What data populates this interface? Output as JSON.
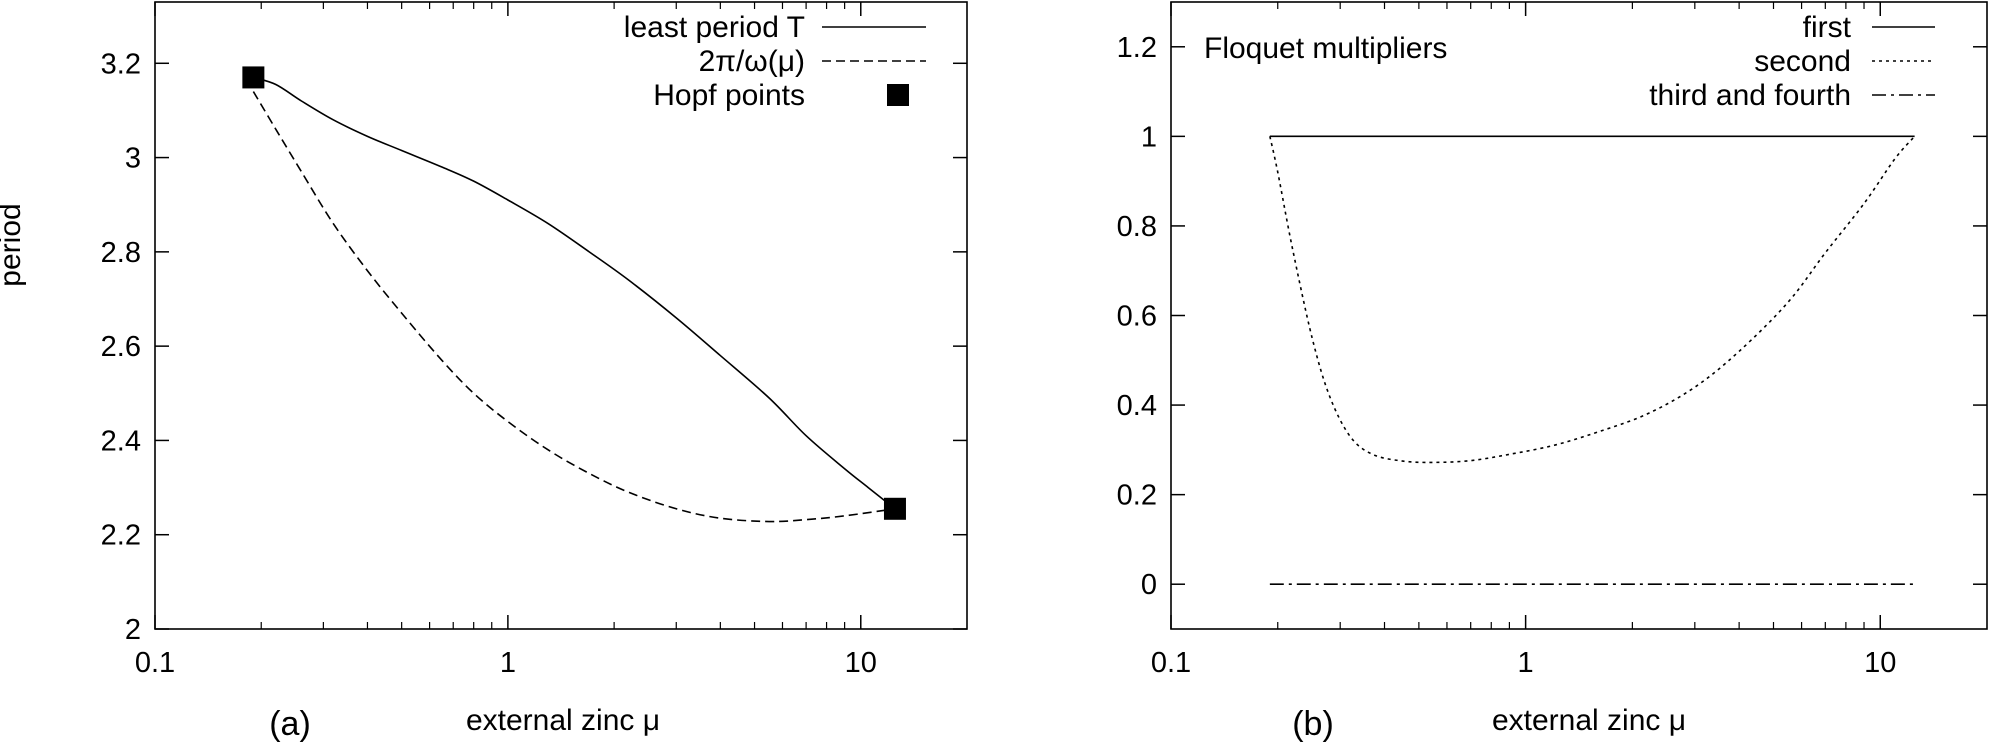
{
  "chart_data": [
    {
      "type": "line",
      "panel_label": "(a)",
      "xlabel": "external zinc μ",
      "ylabel": "period",
      "xscale": "log",
      "xlim": [
        0.1,
        20
      ],
      "ylim": [
        2.0,
        3.33
      ],
      "x_ticks": [
        0.1,
        1,
        10
      ],
      "x_tick_labels": [
        "0.1",
        "1",
        "10"
      ],
      "y_ticks": [
        2.0,
        2.2,
        2.4,
        2.6,
        2.8,
        3.0,
        3.2
      ],
      "y_tick_labels": [
        "2",
        "2.2",
        "2.4",
        "2.6",
        "2.8",
        "3",
        "3.2"
      ],
      "grid": false,
      "legend_position": "top-right",
      "series": [
        {
          "name": "least period T",
          "style": "solid",
          "x": [
            0.19,
            0.22,
            0.26,
            0.32,
            0.4,
            0.5,
            0.65,
            0.8,
            1.0,
            1.3,
            1.7,
            2.2,
            3.0,
            4.0,
            5.5,
            7.0,
            9.0,
            10.5,
            12.5
          ],
          "y": [
            3.17,
            3.155,
            3.12,
            3.08,
            3.045,
            3.015,
            2.98,
            2.95,
            2.91,
            2.86,
            2.8,
            2.74,
            2.66,
            2.58,
            2.49,
            2.41,
            2.34,
            2.3,
            2.255
          ]
        },
        {
          "name": "2π/ω(μ)",
          "style": "dashed",
          "x": [
            0.19,
            0.22,
            0.26,
            0.32,
            0.4,
            0.5,
            0.65,
            0.8,
            1.0,
            1.3,
            1.7,
            2.2,
            3.0,
            4.0,
            5.5,
            7.0,
            9.0,
            12.5
          ],
          "y": [
            3.14,
            3.06,
            2.97,
            2.86,
            2.76,
            2.67,
            2.57,
            2.5,
            2.44,
            2.38,
            2.33,
            2.29,
            2.255,
            2.235,
            2.228,
            2.232,
            2.24,
            2.255
          ]
        },
        {
          "name": "Hopf points",
          "style": "markers",
          "marker": "square",
          "x": [
            0.19,
            12.5
          ],
          "y": [
            3.17,
            2.255
          ]
        }
      ]
    },
    {
      "type": "line",
      "panel_label": "(b)",
      "xlabel": "external zinc μ",
      "ylabel": "",
      "title": "Floquet multipliers",
      "xscale": "log",
      "xlim": [
        0.1,
        20
      ],
      "ylim": [
        -0.1,
        1.3
      ],
      "x_ticks": [
        0.1,
        1,
        10
      ],
      "x_tick_labels": [
        "0.1",
        "1",
        "10"
      ],
      "y_ticks": [
        0.0,
        0.2,
        0.4,
        0.6,
        0.8,
        1.0,
        1.2
      ],
      "y_tick_labels": [
        "0",
        "0.2",
        "0.4",
        "0.6",
        "0.8",
        "1",
        "1.2"
      ],
      "grid": false,
      "legend_position": "top-right",
      "series": [
        {
          "name": "first",
          "style": "solid",
          "x": [
            0.19,
            12.5
          ],
          "y": [
            1.0,
            1.0
          ]
        },
        {
          "name": "second",
          "style": "dotted",
          "x": [
            0.19,
            0.2,
            0.22,
            0.25,
            0.28,
            0.32,
            0.37,
            0.45,
            0.55,
            0.7,
            0.9,
            1.2,
            1.6,
            2.2,
            3.0,
            4.0,
            5.5,
            7.0,
            9.0,
            11.0,
            12.5
          ],
          "y": [
            1.0,
            0.92,
            0.75,
            0.55,
            0.42,
            0.33,
            0.29,
            0.275,
            0.272,
            0.276,
            0.29,
            0.31,
            0.34,
            0.38,
            0.44,
            0.52,
            0.63,
            0.74,
            0.85,
            0.95,
            1.0
          ]
        },
        {
          "name": "third and fourth",
          "style": "dashdot",
          "x": [
            0.19,
            12.5
          ],
          "y": [
            0.0,
            0.0
          ]
        }
      ]
    }
  ]
}
